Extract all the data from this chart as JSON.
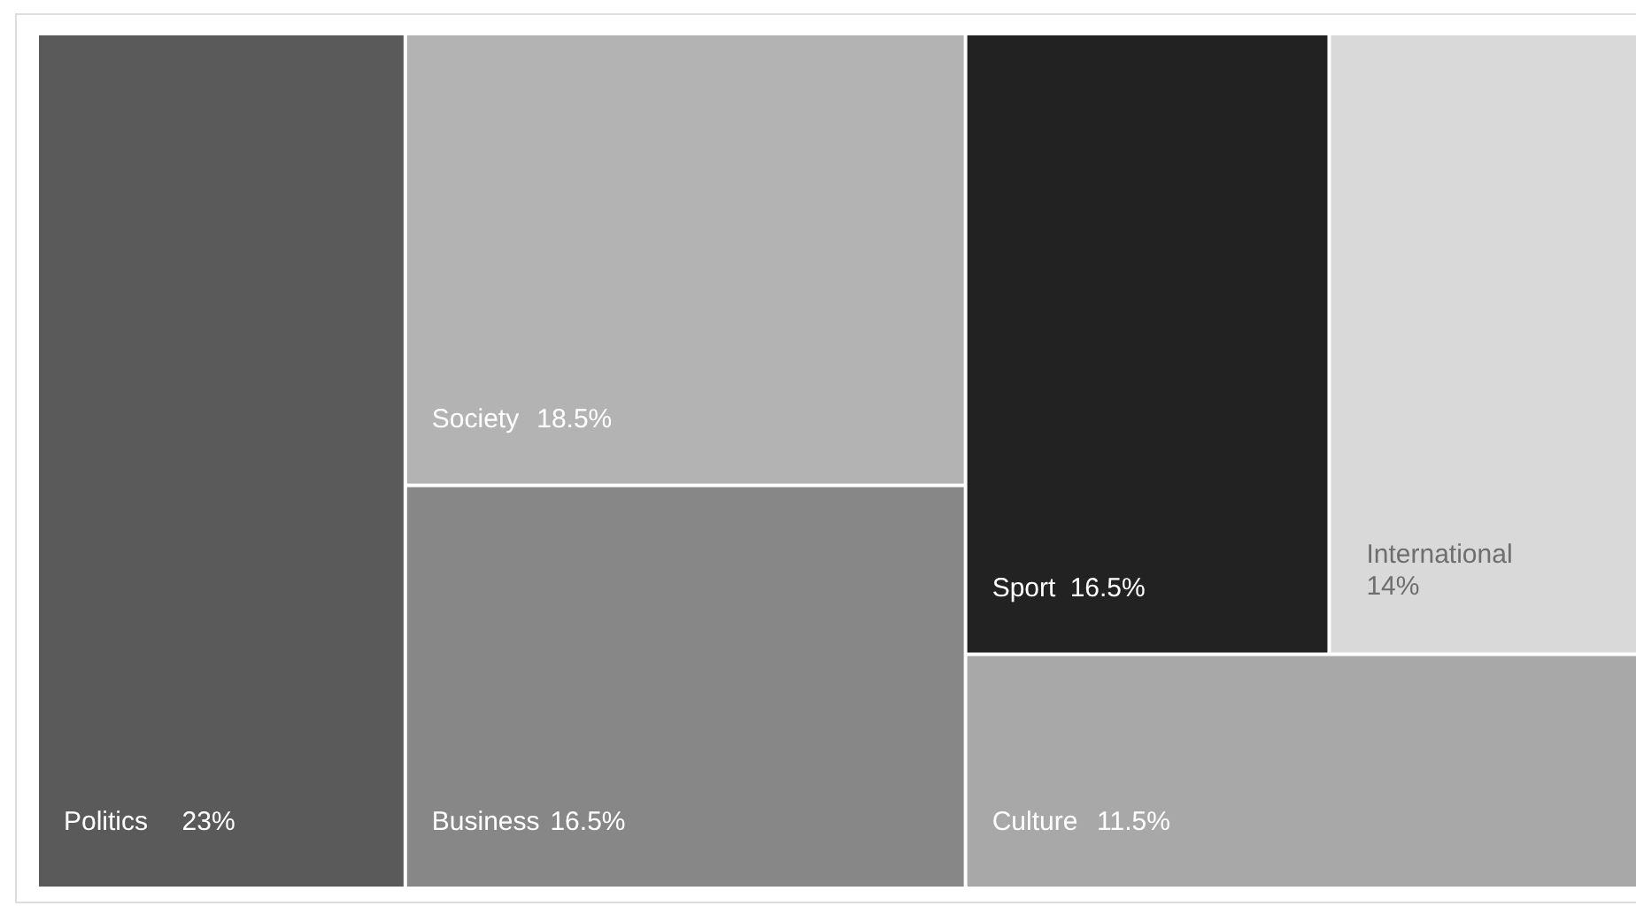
{
  "chart_data": {
    "type": "other",
    "categories": [
      "Politics",
      "Society",
      "Business",
      "Sport",
      "International",
      "Culture"
    ],
    "values": [
      23,
      18.5,
      16.5,
      16.5,
      14,
      11.5
    ],
    "value_labels": [
      "23%",
      "18.5%",
      "16.5%",
      "16.5%",
      "14%",
      "11.5%"
    ],
    "colors": [
      "#5a5a5a",
      "#b3b3b3",
      "#878787",
      "#222222",
      "#d9d9d9",
      "#a8a8a8"
    ]
  }
}
